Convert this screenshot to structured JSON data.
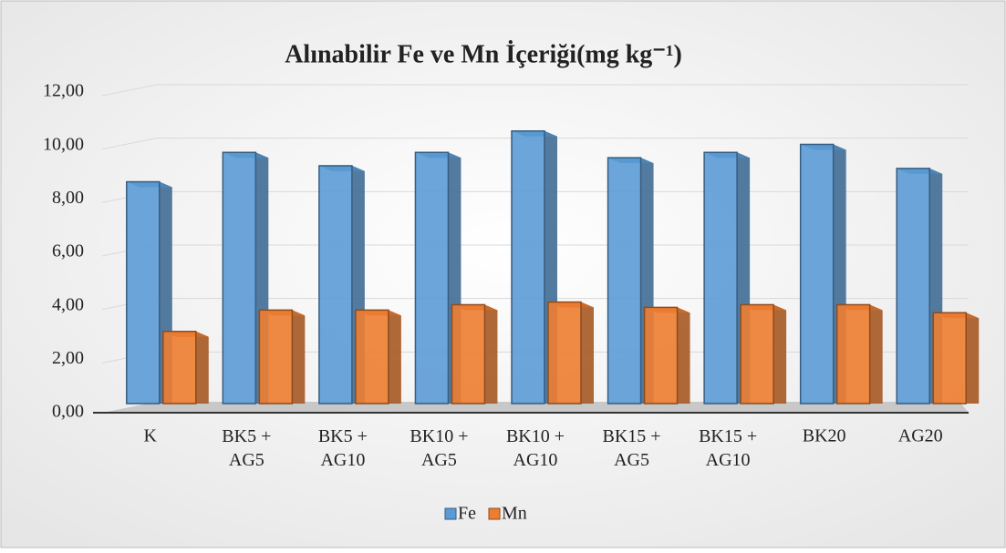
{
  "chart_data": {
    "type": "bar3d",
    "title": "Alınabilir Fe ve Mn İçeriği(mg kg⁻¹)",
    "categories": [
      "K",
      "BK5 + AG5",
      "BK5 + AG10",
      "BK10 + AG5",
      "BK10 + AG10",
      "BK15 + AG5",
      "BK15 + AG10",
      "BK20",
      "AG20"
    ],
    "series": [
      {
        "name": "Fe",
        "color": "#5b9bd5",
        "values": [
          8.3,
          9.4,
          8.9,
          9.4,
          10.2,
          9.2,
          9.4,
          9.7,
          8.8
        ]
      },
      {
        "name": "Mn",
        "color": "#ed7d31",
        "values": [
          2.7,
          3.5,
          3.5,
          3.7,
          3.8,
          3.6,
          3.7,
          3.7,
          3.4
        ]
      }
    ],
    "ylim": [
      0,
      12
    ],
    "yticks": [
      {
        "value": 0,
        "label": "0,00"
      },
      {
        "value": 2,
        "label": "2,00"
      },
      {
        "value": 4,
        "label": "4,00"
      },
      {
        "value": 6,
        "label": "6,00"
      },
      {
        "value": 8,
        "label": "8,00"
      },
      {
        "value": 10,
        "label": "10,00"
      },
      {
        "value": 12,
        "label": "12,00"
      }
    ],
    "grid": true,
    "legend": "bottom"
  }
}
